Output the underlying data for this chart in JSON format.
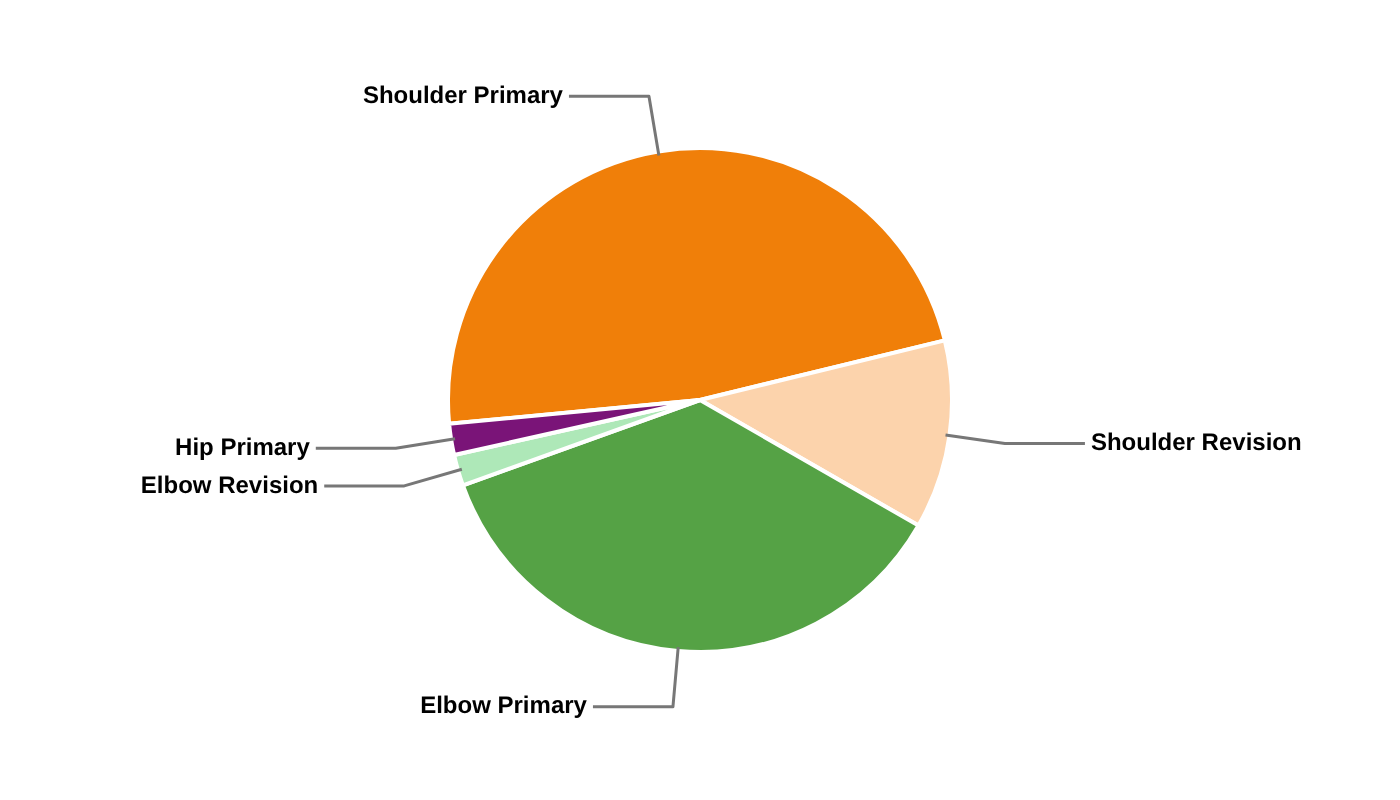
{
  "chart_data": {
    "type": "pie",
    "categories": [
      "Shoulder Primary",
      "Shoulder Revision",
      "Elbow Primary",
      "Elbow Revision",
      "Hip Primary"
    ],
    "values": [
      47.7,
      12.1,
      36.2,
      2.0,
      2.0
    ],
    "colors": [
      "#f07f09",
      "#fcd3ac",
      "#55a245",
      "#aee8b8",
      "#7a1478"
    ],
    "legend": false
  }
}
